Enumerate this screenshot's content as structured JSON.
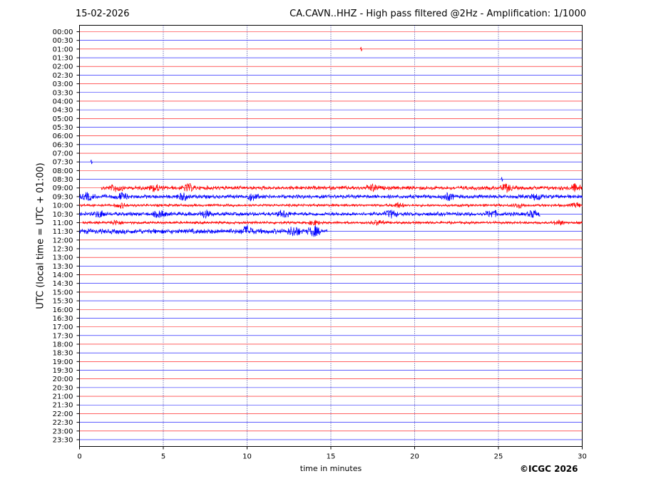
{
  "header": {
    "date": "15-02-2026",
    "title": "CA.CAVN..HHZ - High pass filtered @2Hz - Amplification: 1/1000"
  },
  "footer": {
    "copyright": "©ICGC 2026"
  },
  "chart_data": {
    "type": "line",
    "title": "CA.CAVN..HHZ - High pass filtered @2Hz - Amplification: 1/1000",
    "xlabel": "time in minutes",
    "ylabel": "UTC (local time = UTC + 01:00)",
    "xlim": [
      0,
      30
    ],
    "x_ticks": [
      0,
      5,
      10,
      15,
      20,
      25,
      30
    ],
    "vertical_grid_at": [
      5,
      10,
      15,
      20,
      25
    ],
    "grid": "vertical dotted at every 5 minutes",
    "row_labels": [
      "00:00",
      "00:30",
      "01:00",
      "01:30",
      "02:00",
      "02:30",
      "03:00",
      "03:30",
      "04:00",
      "04:30",
      "05:00",
      "05:30",
      "06:00",
      "06:30",
      "07:00",
      "07:30",
      "08:00",
      "08:30",
      "09:00",
      "09:30",
      "10:00",
      "10:30",
      "11:00",
      "11:30",
      "12:00",
      "12:30",
      "13:00",
      "13:30",
      "14:00",
      "14:30",
      "15:00",
      "15:30",
      "16:00",
      "16:30",
      "17:00",
      "17:30",
      "18:00",
      "18:30",
      "19:00",
      "19:30",
      "20:00",
      "20:30",
      "21:00",
      "21:30",
      "22:00",
      "22:30",
      "23:00",
      "23:30"
    ],
    "trace_colors": [
      "#ff0000",
      "#0000ff"
    ],
    "active_traces": [
      {
        "row": "09:00",
        "start_min": 1.3,
        "end_min": 30,
        "amplitude": "medium",
        "bursts_at_min": [
          2.2,
          4.5,
          6.5,
          17.5,
          25.5,
          29.6
        ]
      },
      {
        "row": "09:30",
        "start_min": 0,
        "end_min": 30,
        "amplitude": "medium",
        "bursts_at_min": [
          0.5,
          2.5,
          6.2,
          10.3,
          22,
          27.3
        ]
      },
      {
        "row": "10:00",
        "start_min": 0,
        "end_min": 30,
        "amplitude": "low",
        "bursts_at_min": [
          2.5,
          19,
          26.2,
          29.7
        ]
      },
      {
        "row": "10:30",
        "start_min": 0,
        "end_min": 27.5,
        "amplitude": "medium",
        "bursts_at_min": [
          1.2,
          4.8,
          7.5,
          12.2,
          18.6,
          24.6,
          27.1
        ]
      },
      {
        "row": "11:00",
        "start_min": 0.2,
        "end_min": 30,
        "amplitude": "low",
        "bursts_at_min": [
          2.2,
          14,
          17.8,
          28.6
        ]
      },
      {
        "row": "11:30",
        "start_min": 0,
        "end_min": 14.8,
        "amplitude": "high",
        "bursts_at_min": [
          10,
          12.8,
          14
        ]
      }
    ],
    "minor_events": [
      {
        "row": "07:30",
        "at_min": 0.7
      },
      {
        "row": "01:00",
        "at_min": 16.8
      },
      {
        "row": "08:30",
        "at_min": 25.2
      }
    ]
  }
}
